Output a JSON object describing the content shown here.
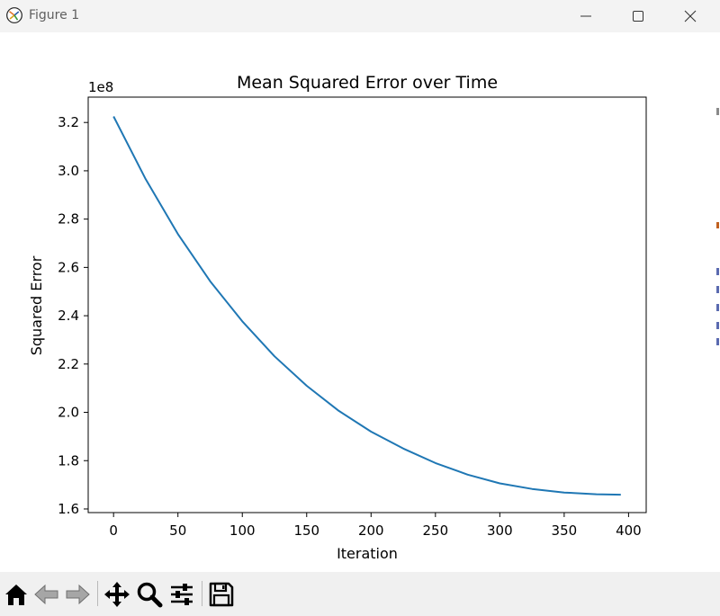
{
  "window": {
    "title": "Figure 1",
    "icons": [
      "app-icon",
      "minimize-icon",
      "maximize-icon",
      "close-icon"
    ]
  },
  "toolbar": {
    "tools": [
      "home-icon",
      "back-icon",
      "forward-icon",
      "pan-icon",
      "zoom-icon",
      "configure-subplots-icon",
      "save-icon"
    ]
  },
  "chart_data": {
    "type": "line",
    "title": "Mean Squared Error over Time",
    "xlabel": "Iteration",
    "ylabel": "Squared Error",
    "offset_text": "1e8",
    "xlim": [
      -19.7,
      413.7
    ],
    "ylim": [
      1.585,
      3.305
    ],
    "x_ticks": [
      0,
      50,
      100,
      150,
      200,
      250,
      300,
      350,
      400
    ],
    "x_tick_labels": [
      "0",
      "50",
      "100",
      "150",
      "200",
      "250",
      "300",
      "350",
      "400"
    ],
    "y_ticks": [
      1.6,
      1.8,
      2.0,
      2.2,
      2.4,
      2.6,
      2.8,
      3.0,
      3.2
    ],
    "y_tick_labels": [
      "1.6",
      "1.8",
      "2.0",
      "2.2",
      "2.4",
      "2.6",
      "2.8",
      "3.0",
      "3.2"
    ],
    "grid": false,
    "line_color": "#1f77b4",
    "series": [
      {
        "x": [
          0,
          25,
          50,
          75,
          100,
          125,
          150,
          175,
          200,
          225,
          250,
          275,
          300,
          325,
          350,
          375,
          394
        ],
        "y": [
          3.225,
          2.965,
          2.738,
          2.543,
          2.377,
          2.232,
          2.11,
          2.006,
          1.92,
          1.85,
          1.79,
          1.742,
          1.706,
          1.683,
          1.668,
          1.661,
          1.659
        ]
      }
    ]
  }
}
